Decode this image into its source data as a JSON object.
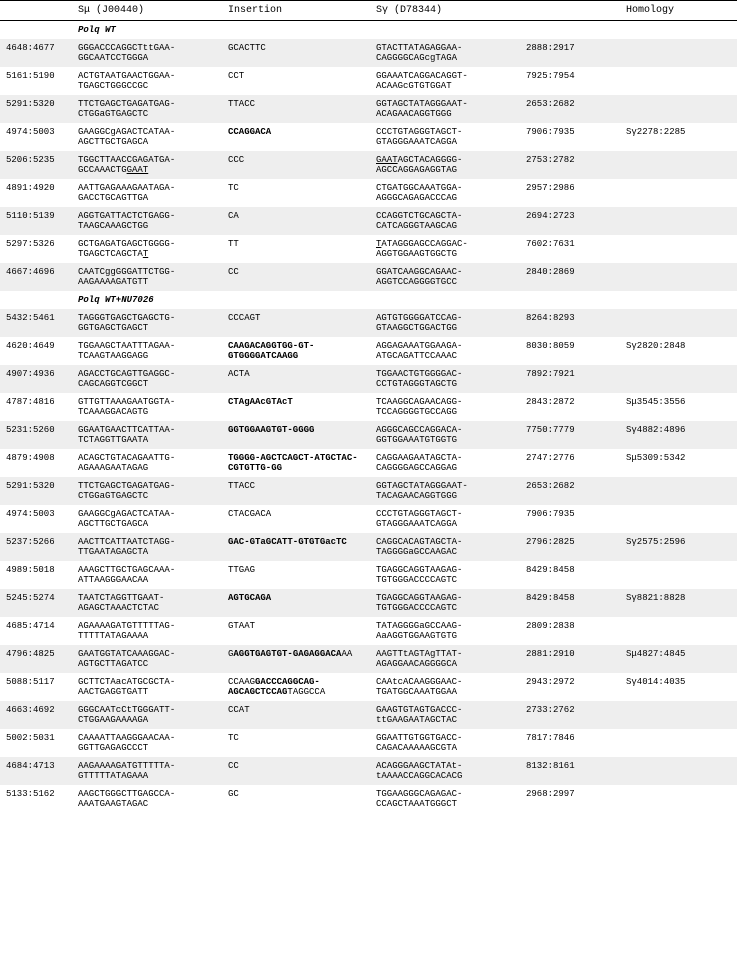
{
  "headers": {
    "col1": "",
    "col2": "Sμ (J00440)",
    "col3": "Insertion",
    "col4": "Sγ (D78344)",
    "col5": "",
    "col6": "Homology"
  },
  "sections": [
    {
      "title_html": "<i><b>Polq</b></i> WT",
      "rows": [
        {
          "stripe": true,
          "c1": "4648:4677",
          "c2": "GGGACCCAGGCTttGAA-GGCAATCCTGGGA",
          "c3": "GCACTTC",
          "c4": "GTACTTATAGAGGAA-CAGGGGCAGcgTAGA",
          "c5": "2888:2917",
          "c6": ""
        },
        {
          "stripe": false,
          "c1": "5161:5190",
          "c2": "ACTGTAATGAACTGGAA-TGAGCTGGGCCGC",
          "c3": "CCT",
          "c4": "GGAAATCAGGACAGGT-ACAAGcGTGTGGAT",
          "c5": "7925:7954",
          "c6": ""
        },
        {
          "stripe": true,
          "c1": "5291:5320",
          "c2": "TTCTGAGCTGAGATGAG-CTGGaGTGAGCTC",
          "c3": "TTACC",
          "c4": "GGTAGCTATAGGGAAT-ACAGAACAGGTGGG",
          "c5": "2653:2682",
          "c6": ""
        },
        {
          "stripe": false,
          "c1": "4974:5003",
          "c2": "GAAGGCgAGACTCATAA-AGCTTGCTGAGCA",
          "c3_html": "<b>CCAGGACA</b>",
          "c4": "CCCTGTAGGGTAGCT-GTAGGGAAATCAGGA",
          "c5": "7906:7935",
          "c6": "Sγ2278:2285"
        },
        {
          "stripe": true,
          "c1": "5206:5235",
          "c2_html": "TGGCTTAACCGAGATGA-GCCAAACTG<span class='under'>GAAT</span>",
          "c3": "CCC",
          "c4_html": "<span class='under'>GAAT</span>AGCTACAGGGG-AGCCAGGAGAGGTAG",
          "c5": "2753:2782",
          "c6": ""
        },
        {
          "stripe": false,
          "c1": "4891:4920",
          "c2": "AATTGAGAAAGAATAGA-GACCTGCAGTTGA",
          "c3": "TC",
          "c4": "CTGATGGCAAATGGA-AGGGCAGAGACCCAG",
          "c5": "2957:2986",
          "c6": ""
        },
        {
          "stripe": true,
          "c1": "5110:5139",
          "c2": "AGGTGATTACTCTGAGG-TAAGCAAAGCTGG",
          "c3": "CA",
          "c4": "CCAGGTCTGCAGCTA-CATCAGGGTAAGCAG",
          "c5": "2694:2723",
          "c6": ""
        },
        {
          "stripe": false,
          "c1": "5297:5326",
          "c2_html": "GCTGAGATGAGCTGGGG-TGAGCTCAGCTA<span class='under'>T</span>",
          "c3": "TT",
          "c4_html": "<span class='under'>T</span>ATAGGGAGCCAGGAC-AGGTGGAAGTGGCTG",
          "c5": "7602:7631",
          "c6": ""
        },
        {
          "stripe": true,
          "c1": "4667:4696",
          "c2": "CAATCggGGGATTCTGG-AAGAAAAGATGTT",
          "c3": "CC",
          "c4": "GGATCAAGGCAGAAC-AGGTCCAGGGGTGCC",
          "c5": "2840:2869",
          "c6": ""
        }
      ]
    },
    {
      "title_html": "<i><b>Polq</b></i> WT+NU7026",
      "rows": [
        {
          "stripe": true,
          "c1": "5432:5461",
          "c2": "TAGGGTGAGCTGAGCTG-GGTGAGCTGAGCT",
          "c3": "CCCAGT",
          "c4": "AGTGTGGGGATCCAG-GTAAGGCTGGACTGG",
          "c5": "8264:8293",
          "c6": ""
        },
        {
          "stripe": false,
          "c1": "4620:4649",
          "c2": "TGGAAGCTAATTTAGAA-TCAAGTAAGGAGG",
          "c3_html": "<b>CAAGACAGGTGG-GT-GTGGGGATCAAGG</b>",
          "c4": "AGGAGAAATGGAAGA-ATGCAGATTCCAAAC",
          "c5": "8030:8059",
          "c6": "Sγ2820:2848"
        },
        {
          "stripe": true,
          "c1": "4907:4936",
          "c2": "AGACCTGCAGTTGAGGC-CAGCAGGTCGGCT",
          "c3": "ACTA",
          "c4": "TGGAACTGTGGGGAC-CCTGTAGGGTAGCTG",
          "c5": "7892:7921",
          "c6": ""
        },
        {
          "stripe": false,
          "c1": "4787:4816",
          "c2": "GTTGTTAAAGAATGGTA-TCAAAGGACAGTG",
          "c3_html": "<b>CTAgAAcGTAcT</b>",
          "c4": "TCAAGGCAGAACAGG-TCCAGGGGTGCCAGG",
          "c5": "2843:2872",
          "c6": "Sμ3545:3556"
        },
        {
          "stripe": true,
          "c1": "5231:5260",
          "c2": "GGAATGAACTTCATTAA-TCTAGGTTGAATA",
          "c3_html": "<b>GGTGGAAGTGT-GGGG</b>",
          "c4": "AGGGCAGCCAGGACA-GGTGGAAATGTGGTG",
          "c5": "7750:7779",
          "c6": "Sγ4882:4896"
        },
        {
          "stripe": false,
          "c1": "4879:4908",
          "c2": "ACAGCTGTACAGAATTG-AGAAAGAATAGAG",
          "c3_html": "<b>TGGGG-AGCTCAGCT-ATGCTAC-CGTGTTG-GG</b>",
          "c4": "CAGGAAGAATAGCTA-CAGGGGAGCCAGGAG",
          "c5": "2747:2776",
          "c6": "Sμ5309:5342"
        },
        {
          "stripe": true,
          "c1": "5291:5320",
          "c2": "TTCTGAGCTGAGATGAG-CTGGaGTGAGCTC",
          "c3": "TTACC",
          "c4": "GGTAGCTATAGGGAAT-TACAGAACAGGTGGG",
          "c5": "2653:2682",
          "c6": ""
        },
        {
          "stripe": false,
          "c1": "4974:5003",
          "c2": "GAAGGCgAGACTCATAA-AGCTTGCTGAGCA",
          "c3": "CTACGACA",
          "c4": "CCCTGTAGGGTAGCT- GTAGGGAAATCAGGA",
          "c5": "7906:7935",
          "c6": ""
        },
        {
          "stripe": true,
          "c1": "5237:5266",
          "c2": "AACTTCATTAATCTAGG-TTGAATAGAGCTA",
          "c3_html": "<b>GAC-GTaGCATT-GTGTGacTC</b>",
          "c4": "CAGGCACAGTAGCTA-TAGGGGaGCCAAGAC",
          "c5": "2796:2825",
          "c6": "Sγ2575:2596"
        },
        {
          "stripe": false,
          "c1": "4989:5018",
          "c2": "AAAGCTTGCTGAGCAAA-ATTAAGGGAACAA",
          "c3": "TTGAG",
          "c4": "TGAGGCAGGTAAGAG-TGTGGGACCCCAGTC",
          "c5": "8429:8458",
          "c6": ""
        },
        {
          "stripe": true,
          "c1": "5245:5274",
          "c2": "TAATCTAGGTTGAAT-AGAGCTAAACTCTAC",
          "c3_html": "<b>AGTGCAGA</b>",
          "c4": "TGAGGCAGGTAAGAG-TGTGGGACCCCAGTC",
          "c5": "8429:8458",
          "c6": "Sγ8821:8828"
        },
        {
          "stripe": false,
          "c1": "4685:4714",
          "c2": "AGAAAAGATGTTTTTAG-TTTTTATAGAAAA",
          "c3": "GTAAT",
          "c4": "TATAGGGGaGCCAAG-AaAGGTGGAAGTGTG",
          "c5": "2809:2838",
          "c6": ""
        },
        {
          "stripe": true,
          "c1": "4796:4825",
          "c2": "GAATGGTATCAAAGGAC-AGTGCTTAGATCC",
          "c3_html": "G<b>AGGTGAGTGT-GAGAGGACA</b>AA",
          "c4": "AAGTTtAGTAgTTAT-AGAGGAACAGGGGCA",
          "c5": "2881:2910",
          "c6": "Sμ4827:4845"
        },
        {
          "stripe": false,
          "c1": "5088:5117",
          "c2": "GCTTCTAacATGCGCTA-AACTGAGGTGATT",
          "c3_html": "CCAAG<b>GACCCAGGCAG-AGCAGCTCCAG</b>TAGGCCA",
          "c4": "CAAtcACAAGGGAAC-TGATGGCAAATGGAA",
          "c5": "2943:2972",
          "c6": "Sγ4014:4035"
        },
        {
          "stripe": true,
          "c1": "4663:4692",
          "c2": "GGGCAATcCtTGGGATT-CTGGAAGAAAAGA",
          "c3": "CCAT",
          "c4": "GAAGTGTAGTGACCC-ttGAAGAATAGCTAC",
          "c5": "2733:2762",
          "c6": ""
        },
        {
          "stripe": false,
          "c1": "5002:5031",
          "c2": "CAAAATTAAGGGAACAA-GGTTGAGAGCCCT",
          "c3": "TC",
          "c4": "GGAATTGTGGTGACC-CAGACAAAAAGCGTA",
          "c5": "7817:7846",
          "c6": ""
        },
        {
          "stripe": true,
          "c1": "4684:4713",
          "c2": "AAGAAAAGATGTTTTTA-GTTTTTATAGAAA",
          "c3": "CC",
          "c4": "ACAGGGAAGCTATAt-tAAAACCAGGCACACG",
          "c5": "8132:8161",
          "c6": ""
        },
        {
          "stripe": false,
          "c1": "5133:5162",
          "c2": "AAGCTGGGCTTGAGCCA-AAATGAAGTAGAC",
          "c3": "GC",
          "c4": "TGGAAGGGCAGAGAC-CCAGCTAAATGGGCT",
          "c5": "2968:2997",
          "c6": ""
        }
      ]
    }
  ],
  "style": {
    "stripe_bg": "#eeeeee"
  }
}
